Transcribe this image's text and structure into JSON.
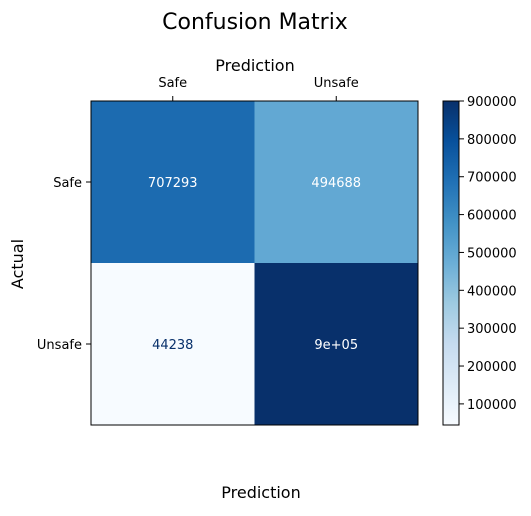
{
  "chart_data": {
    "type": "heatmap",
    "title": "Confusion Matrix",
    "top_label": "Prediction",
    "xlabel": "Prediction",
    "ylabel": "Actual",
    "x_categories": [
      "Safe",
      "Unsafe"
    ],
    "y_categories": [
      "Safe",
      "Unsafe"
    ],
    "values": [
      [
        707293,
        494688
      ],
      [
        44238,
        900000
      ]
    ],
    "cell_labels": [
      [
        "707293",
        "494688"
      ],
      [
        "44238",
        "9e+05"
      ]
    ],
    "colormap": "Blues",
    "color_range": [
      44238,
      900000
    ],
    "colorbar_ticks": [
      100000,
      200000,
      300000,
      400000,
      500000,
      600000,
      700000,
      800000,
      900000
    ],
    "colorbar_tick_labels": [
      "100000",
      "200000",
      "300000",
      "400000",
      "500000",
      "600000",
      "700000",
      "800000",
      "900000"
    ],
    "grid": false,
    "text_colors": {
      "light": "#ffffff",
      "dark": "#08306b"
    }
  }
}
